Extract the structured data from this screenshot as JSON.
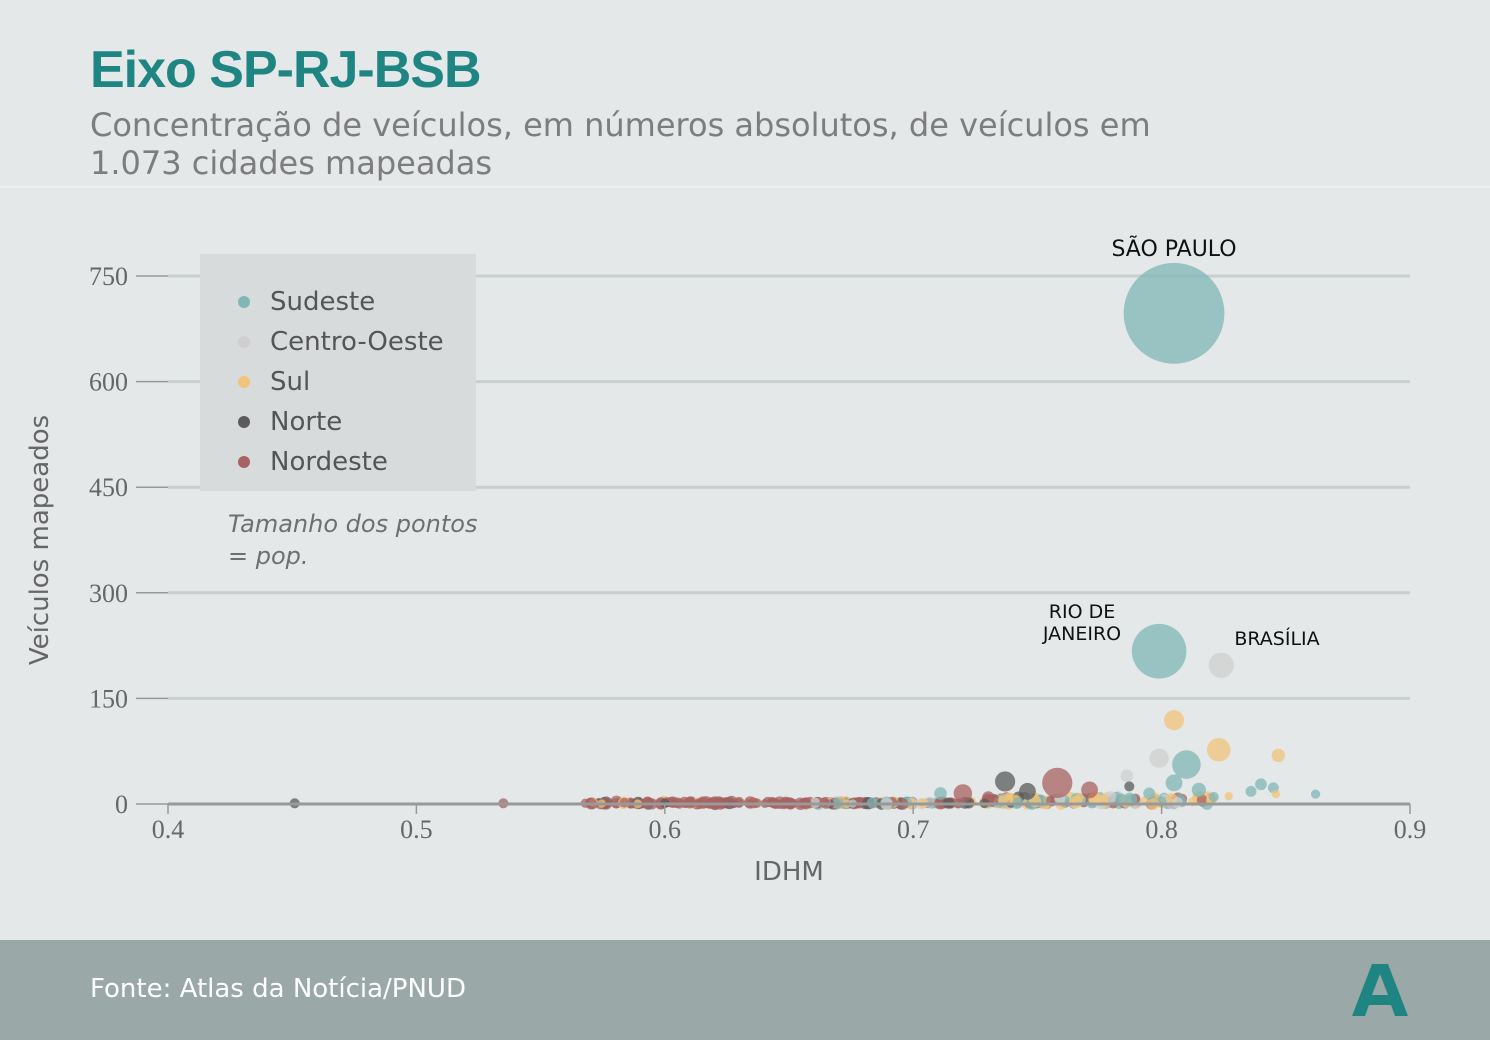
{
  "header": {
    "title": "Eixo SP-RJ-BSB",
    "subtitle": "Concentração de veículos, em números absolutos, de veículos em 1.073 cidades mapeadas"
  },
  "legend": {
    "items": [
      {
        "label": "Sudeste",
        "color": "#7fb7b6"
      },
      {
        "label": "Centro-Oeste",
        "color": "#cfcfcf"
      },
      {
        "label": "Sul",
        "color": "#f0c47a"
      },
      {
        "label": "Norte",
        "color": "#5b5b5b"
      },
      {
        "label": "Nordeste",
        "color": "#a86262"
      }
    ],
    "size_note": "Tamanho dos pontos = pop."
  },
  "footer": {
    "source": "Fonte: Atlas da Notícia/PNUD",
    "logo": "A"
  },
  "chart_data": {
    "type": "scatter",
    "title": "Eixo SP-RJ-BSB",
    "xlabel": "IDHM",
    "ylabel": "Veículos mapeados",
    "xlim": [
      0.4,
      0.9
    ],
    "ylim": [
      0,
      780
    ],
    "x_ticks": [
      "0.4",
      "0.5",
      "0.6",
      "0.7",
      "0.8",
      "0.9"
    ],
    "y_ticks": [
      "0",
      "150",
      "300",
      "450",
      "600",
      "750"
    ],
    "grid": "horizontal",
    "legend_position": "top-left",
    "colors": {
      "Sudeste": "#7fb7b6",
      "Centro-Oeste": "#cfcfcf",
      "Sul": "#f0c47a",
      "Norte": "#5b5b5b",
      "Nordeste": "#a86262"
    },
    "annotations": [
      {
        "text": "SÃO PAULO",
        "x": 0.805,
        "y": 697
      },
      {
        "text": "RIO DE JANEIRO",
        "x": 0.799,
        "y": 217
      },
      {
        "text": "BRASÍLIA",
        "x": 0.824,
        "y": 197
      }
    ],
    "points": [
      {
        "region": "Sudeste",
        "x": 0.805,
        "y": 697,
        "size": 12
      },
      {
        "region": "Sudeste",
        "x": 0.799,
        "y": 217,
        "size": 6.5
      },
      {
        "region": "Centro-Oeste",
        "x": 0.824,
        "y": 197,
        "size": 3
      },
      {
        "region": "Sul",
        "x": 0.805,
        "y": 119,
        "size": 2.4
      },
      {
        "region": "Sul",
        "x": 0.823,
        "y": 77,
        "size": 2.8
      },
      {
        "region": "Sul",
        "x": 0.847,
        "y": 69,
        "size": 1.6
      },
      {
        "region": "Centro-Oeste",
        "x": 0.799,
        "y": 65,
        "size": 2.3
      },
      {
        "region": "Sudeste",
        "x": 0.81,
        "y": 56,
        "size": 3.4
      },
      {
        "region": "Centro-Oeste",
        "x": 0.786,
        "y": 40,
        "size": 1.5
      },
      {
        "region": "Nordeste",
        "x": 0.758,
        "y": 30,
        "size": 3.6
      },
      {
        "region": "Norte",
        "x": 0.737,
        "y": 32,
        "size": 2.4
      },
      {
        "region": "Norte",
        "x": 0.746,
        "y": 18,
        "size": 2
      },
      {
        "region": "Sudeste",
        "x": 0.805,
        "y": 30,
        "size": 2
      },
      {
        "region": "Sudeste",
        "x": 0.84,
        "y": 28,
        "size": 1.4
      },
      {
        "region": "Sudeste",
        "x": 0.845,
        "y": 23,
        "size": 1.3
      },
      {
        "region": "Sudeste",
        "x": 0.815,
        "y": 20,
        "size": 1.7
      },
      {
        "region": "Sudeste",
        "x": 0.836,
        "y": 18,
        "size": 1.3
      },
      {
        "region": "Sudeste",
        "x": 0.862,
        "y": 14,
        "size": 1.1
      },
      {
        "region": "Sul",
        "x": 0.846,
        "y": 14,
        "size": 1
      },
      {
        "region": "Sul",
        "x": 0.827,
        "y": 11,
        "size": 1
      },
      {
        "region": "Nordeste",
        "x": 0.771,
        "y": 20,
        "size": 2
      },
      {
        "region": "Norte",
        "x": 0.787,
        "y": 25,
        "size": 1.2
      },
      {
        "region": "Sudeste",
        "x": 0.711,
        "y": 15,
        "size": 1.5
      },
      {
        "region": "Nordeste",
        "x": 0.72,
        "y": 15,
        "size": 2.2
      },
      {
        "region": "Sudeste",
        "x": 0.821,
        "y": 10,
        "size": 1.2
      },
      {
        "region": "Sudeste",
        "x": 0.795,
        "y": 15,
        "size": 1.4
      },
      {
        "region": "Norte",
        "x": 0.451,
        "y": 1,
        "size": 1.2
      },
      {
        "region": "Nordeste",
        "x": 0.535,
        "y": 1,
        "size": 1.2
      },
      {
        "region": "Nordeste",
        "x": 0.568,
        "y": 1,
        "size": 1.1
      },
      {
        "region": "Nordeste",
        "x": 0.6,
        "y": 1,
        "size": 1.1
      },
      {
        "region": "Norte",
        "x": 0.6,
        "y": 1,
        "size": 1.1
      }
    ]
  }
}
